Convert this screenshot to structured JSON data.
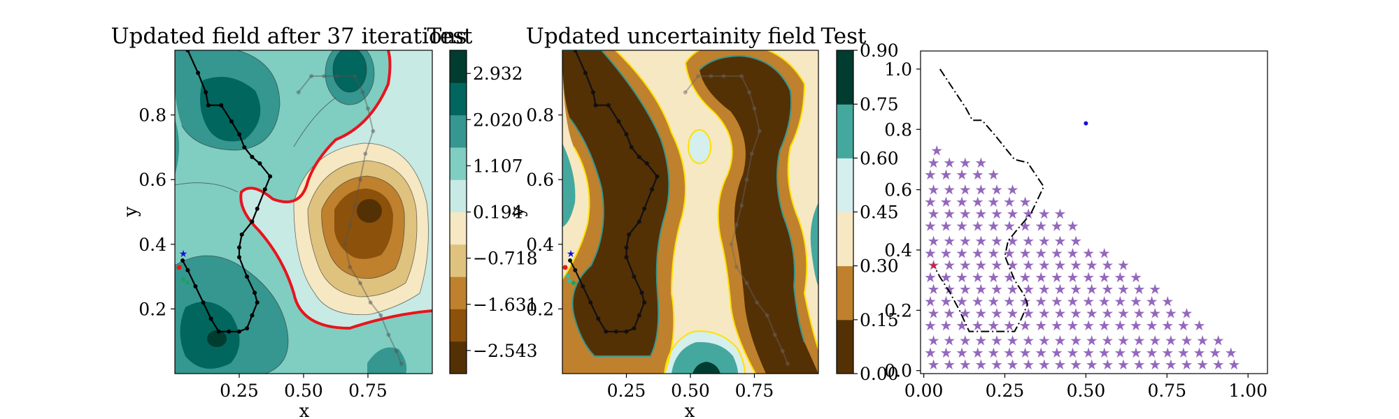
{
  "chart_data": [
    {
      "type": "contour",
      "title": "Updated field after 37 iterations",
      "xlabel": "x",
      "ylabel": "y",
      "xlim": [
        0.0,
        1.0
      ],
      "ylim": [
        0.0,
        1.0
      ],
      "xticks": [
        "0.25",
        "0.50",
        "0.75"
      ],
      "yticks": [
        "0.2",
        "0.4",
        "0.6",
        "0.8"
      ],
      "colorbar": {
        "title": "Test",
        "ticks": [
          "−2.543",
          "−1.631",
          "−0.718",
          "0.194",
          "1.107",
          "2.020",
          "2.932"
        ],
        "levels": [
          "#543005",
          "#8c510a",
          "#bf812d",
          "#dfc27d",
          "#f6e8c3",
          "#c7eae5",
          "#80cdc1",
          "#35978f",
          "#01665e",
          "#003c30"
        ],
        "range": [
          -3.0,
          3.39
        ]
      },
      "path_main": [
        [
          0.05,
          1.0
        ],
        [
          0.09,
          0.93
        ],
        [
          0.12,
          0.87
        ],
        [
          0.13,
          0.83
        ],
        [
          0.18,
          0.83
        ],
        [
          0.22,
          0.78
        ],
        [
          0.25,
          0.74
        ],
        [
          0.27,
          0.7
        ],
        [
          0.3,
          0.67
        ],
        [
          0.33,
          0.65
        ],
        [
          0.37,
          0.61
        ],
        [
          0.35,
          0.57
        ],
        [
          0.32,
          0.51
        ],
        [
          0.3,
          0.47
        ],
        [
          0.26,
          0.43
        ],
        [
          0.25,
          0.39
        ],
        [
          0.25,
          0.36
        ],
        [
          0.28,
          0.3
        ],
        [
          0.31,
          0.25
        ],
        [
          0.32,
          0.22
        ],
        [
          0.3,
          0.18
        ],
        [
          0.28,
          0.14
        ],
        [
          0.25,
          0.13
        ],
        [
          0.21,
          0.13
        ],
        [
          0.17,
          0.13
        ],
        [
          0.14,
          0.17
        ],
        [
          0.11,
          0.22
        ],
        [
          0.08,
          0.27
        ],
        [
          0.05,
          0.32
        ],
        [
          0.03,
          0.35
        ]
      ],
      "path_faint": [
        [
          0.48,
          0.87
        ],
        [
          0.53,
          0.92
        ],
        [
          0.58,
          0.92
        ],
        [
          0.63,
          0.92
        ],
        [
          0.7,
          0.92
        ],
        [
          0.73,
          0.87
        ],
        [
          0.75,
          0.82
        ],
        [
          0.77,
          0.75
        ],
        [
          0.74,
          0.68
        ],
        [
          0.72,
          0.6
        ],
        [
          0.7,
          0.52
        ],
        [
          0.68,
          0.46
        ],
        [
          0.66,
          0.4
        ],
        [
          0.68,
          0.33
        ],
        [
          0.72,
          0.28
        ],
        [
          0.76,
          0.22
        ],
        [
          0.8,
          0.18
        ],
        [
          0.83,
          0.12
        ],
        [
          0.86,
          0.07
        ],
        [
          0.88,
          0.03
        ]
      ]
    },
    {
      "type": "contour",
      "title": "Updated uncertainity field",
      "xlabel": "x",
      "ylabel": "y",
      "xlim": [
        0.0,
        1.0
      ],
      "ylim": [
        0.0,
        1.0
      ],
      "xticks": [
        "0.25",
        "0.50",
        "0.75"
      ],
      "yticks": [
        "0.2",
        "0.4",
        "0.6",
        "0.8"
      ],
      "colorbar": {
        "title": "Test",
        "ticks": [
          "0.00",
          "0.15",
          "0.30",
          "0.45",
          "0.60",
          "0.75",
          "0.90"
        ],
        "levels": [
          "#543005",
          "#bf812d",
          "#f6e8c3",
          "#d4efed",
          "#45a89e",
          "#003c30"
        ],
        "range": [
          0.0,
          0.9
        ]
      }
    },
    {
      "type": "scatter",
      "title": "",
      "xlim": [
        -0.01,
        1.06
      ],
      "ylim": [
        -0.01,
        1.06
      ],
      "xticks": [
        "0.00",
        "0.25",
        "0.50",
        "0.75",
        "1.00"
      ],
      "yticks": [
        "0.0",
        "0.2",
        "0.4",
        "0.6",
        "0.8",
        "1.0"
      ],
      "grid": false,
      "star_color": "#9467bd",
      "star_rows": [
        {
          "y": 0.02,
          "x_start": 0.03,
          "x_end": 0.99
        },
        {
          "y": 0.06,
          "x_start": 0.02,
          "x_end": 0.96
        },
        {
          "y": 0.1,
          "x_start": 0.03,
          "x_end": 0.91
        },
        {
          "y": 0.15,
          "x_start": 0.02,
          "x_end": 0.86
        },
        {
          "y": 0.19,
          "x_start": 0.03,
          "x_end": 0.81
        },
        {
          "y": 0.23,
          "x_start": 0.02,
          "x_end": 0.78
        },
        {
          "y": 0.27,
          "x_start": 0.03,
          "x_end": 0.73
        },
        {
          "y": 0.31,
          "x_start": 0.02,
          "x_end": 0.68
        },
        {
          "y": 0.35,
          "x_start": 0.03,
          "x_end": 0.63
        },
        {
          "y": 0.39,
          "x_start": 0.02,
          "x_end": 0.56
        },
        {
          "y": 0.43,
          "x_start": 0.03,
          "x_end": 0.51
        },
        {
          "y": 0.48,
          "x_start": 0.02,
          "x_end": 0.46
        },
        {
          "y": 0.52,
          "x_start": 0.03,
          "x_end": 0.42
        },
        {
          "y": 0.56,
          "x_start": 0.02,
          "x_end": 0.33
        },
        {
          "y": 0.6,
          "x_start": 0.03,
          "x_end": 0.29
        },
        {
          "y": 0.65,
          "x_start": 0.02,
          "x_end": 0.24
        },
        {
          "y": 0.69,
          "x_start": 0.03,
          "x_end": 0.19
        },
        {
          "y": 0.73,
          "x_start": 0.04,
          "x_end": 0.04
        }
      ],
      "boundary_path": [
        [
          0.05,
          1.0
        ],
        [
          0.13,
          0.87
        ],
        [
          0.15,
          0.83
        ],
        [
          0.18,
          0.83
        ],
        [
          0.22,
          0.78
        ],
        [
          0.25,
          0.74
        ],
        [
          0.28,
          0.7
        ],
        [
          0.32,
          0.69
        ],
        [
          0.37,
          0.61
        ],
        [
          0.33,
          0.52
        ],
        [
          0.29,
          0.47
        ],
        [
          0.26,
          0.43
        ],
        [
          0.25,
          0.38
        ],
        [
          0.28,
          0.3
        ],
        [
          0.31,
          0.25
        ],
        [
          0.32,
          0.22
        ],
        [
          0.3,
          0.17
        ],
        [
          0.28,
          0.13
        ],
        [
          0.21,
          0.13
        ],
        [
          0.14,
          0.13
        ],
        [
          0.11,
          0.2
        ],
        [
          0.08,
          0.26
        ],
        [
          0.05,
          0.31
        ],
        [
          0.03,
          0.35
        ]
      ],
      "blue_point": [
        0.5,
        0.82
      ],
      "red_point": [
        0.03,
        0.35
      ]
    }
  ]
}
